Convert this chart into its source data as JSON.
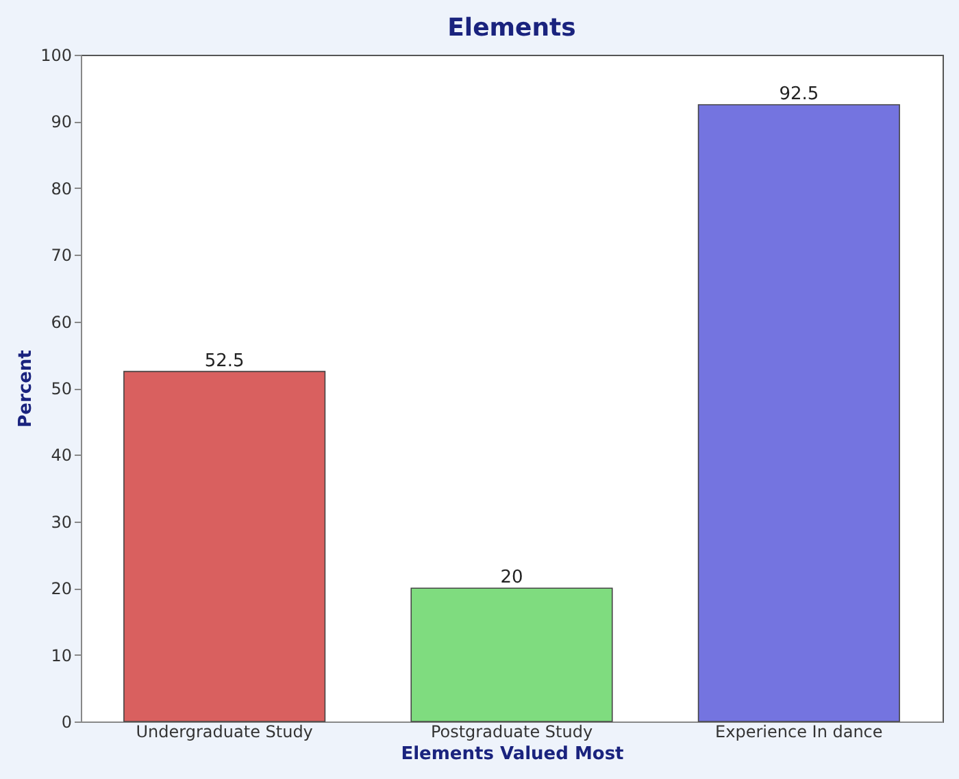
{
  "chart_data": {
    "type": "bar",
    "title": "Elements",
    "xlabel": "Elements Valued Most",
    "ylabel": "Percent",
    "categories": [
      "Undergraduate Study",
      "Postgraduate Study",
      "Experience In dance"
    ],
    "values": [
      52.5,
      20,
      92.5
    ],
    "colors": [
      "#d9605f",
      "#7fdc7f",
      "#7474e0"
    ],
    "ylim": [
      0,
      100
    ],
    "yticks": [
      0,
      10,
      20,
      30,
      40,
      50,
      60,
      70,
      80,
      90,
      100
    ],
    "data_labels": true,
    "grid": false
  }
}
